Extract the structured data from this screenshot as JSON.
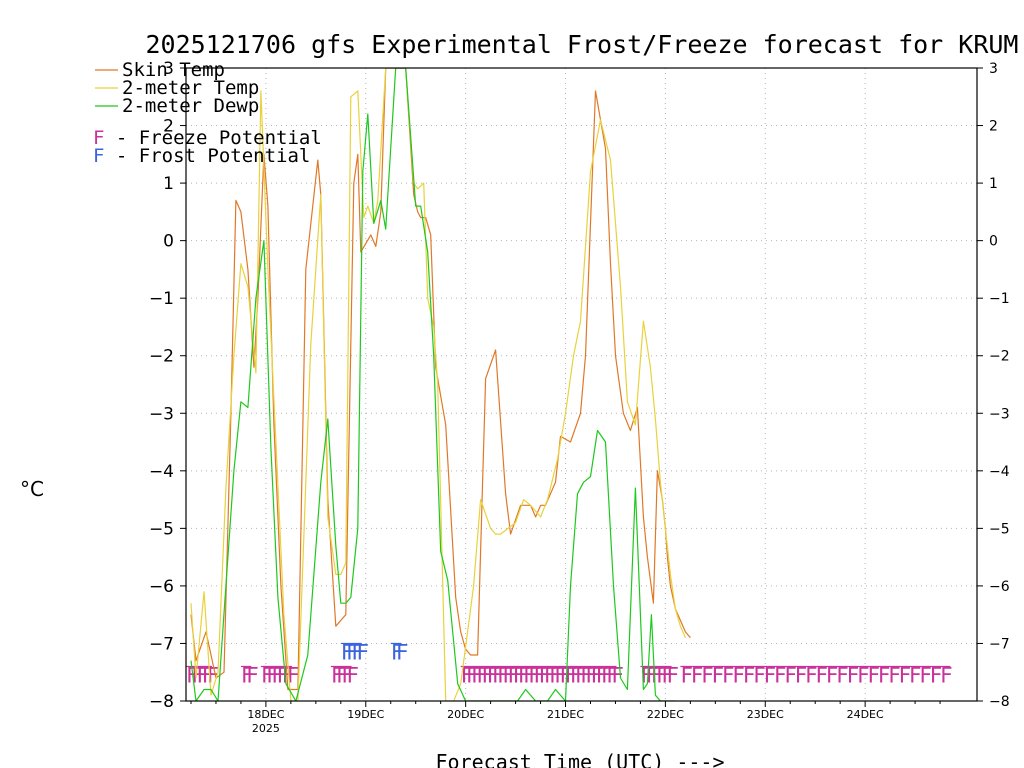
{
  "chart_data": {
    "type": "line",
    "title": "2025121706 gfs Experimental Frost/Freeze forecast for KRUM",
    "xlabel": "Forecast Time (UTC) --->",
    "ylabel": "°C",
    "ylim": [
      -8,
      3
    ],
    "yticks": [
      -8,
      -7,
      -6,
      -5,
      -4,
      -3,
      -2,
      -1,
      0,
      1,
      2,
      3
    ],
    "ytick_labels": [
      "−8",
      "−7",
      "−6",
      "−5",
      "−4",
      "−3",
      "−2",
      "−1",
      "0",
      "1",
      "2",
      "3"
    ],
    "xlim": [
      -0.8,
      7.12
    ],
    "x_unit": "days since 2025-12-18 00Z",
    "xticks": [
      {
        "x": 0,
        "label": "18DEC",
        "sublabel": "2025"
      },
      {
        "x": 1,
        "label": "19DEC",
        "sublabel": ""
      },
      {
        "x": 2,
        "label": "20DEC",
        "sublabel": ""
      },
      {
        "x": 3,
        "label": "21DEC",
        "sublabel": ""
      },
      {
        "x": 4,
        "label": "22DEC",
        "sublabel": ""
      },
      {
        "x": 5,
        "label": "23DEC",
        "sublabel": ""
      },
      {
        "x": 6,
        "label": "24DEC",
        "sublabel": ""
      }
    ],
    "grid": true,
    "legend": {
      "placement": "top-left"
    },
    "series": [
      {
        "name": "Skin Temp",
        "color": "#e07828",
        "x": [
          -0.75,
          -0.7,
          -0.6,
          -0.5,
          -0.42,
          -0.35,
          -0.3,
          -0.25,
          -0.18,
          -0.12,
          -0.08,
          -0.02,
          0.02,
          0.08,
          0.15,
          0.22,
          0.32,
          0.4,
          0.52,
          0.55,
          0.62,
          0.7,
          0.75,
          0.8,
          0.88,
          0.92,
          0.95,
          1.05,
          1.1,
          1.15,
          1.2,
          1.25,
          1.3,
          1.4,
          1.48,
          1.52,
          1.55,
          1.6,
          1.65,
          1.7,
          1.8,
          1.9,
          1.95,
          2.0,
          2.05,
          2.08,
          2.12,
          2.2,
          2.3,
          2.4,
          2.45,
          2.55,
          2.65,
          2.7,
          2.75,
          2.8,
          2.9,
          2.95,
          3.05,
          3.15,
          3.2,
          3.3,
          3.4,
          3.45,
          3.5,
          3.58,
          3.65,
          3.72,
          3.78,
          3.82,
          3.88,
          3.92,
          3.97,
          4.0,
          4.02,
          4.05,
          4.1,
          4.15,
          4.2,
          4.25
        ],
        "y": [
          -6.5,
          -7.3,
          -6.8,
          -7.6,
          -7.5,
          -3.0,
          0.7,
          0.5,
          -0.5,
          -2.2,
          -1.0,
          1.5,
          0.6,
          -3.2,
          -6.0,
          -7.8,
          -7.8,
          -0.5,
          1.4,
          0.8,
          -4.5,
          -6.7,
          -6.6,
          -6.5,
          1.0,
          1.5,
          -0.2,
          0.1,
          -0.1,
          0.5,
          3.0,
          3.0,
          3.0,
          3.0,
          0.8,
          0.5,
          0.4,
          0.4,
          0.1,
          -2.2,
          -3.2,
          -6.2,
          -6.8,
          -7.1,
          -7.2,
          -7.2,
          -7.2,
          -2.4,
          -1.9,
          -4.4,
          -5.1,
          -4.6,
          -4.6,
          -4.8,
          -4.6,
          -4.6,
          -4.2,
          -3.4,
          -3.5,
          -3.0,
          -2.0,
          2.6,
          1.6,
          -0.4,
          -2.0,
          -3.0,
          -3.3,
          -2.9,
          -4.8,
          -5.5,
          -6.3,
          -4.0,
          -4.5,
          -5.0,
          -5.5,
          -6.0,
          -6.4,
          -6.6,
          -6.8,
          -6.9
        ]
      },
      {
        "name": "2-meter Temp",
        "color": "#e8d23c",
        "x": [
          -0.75,
          -0.7,
          -0.62,
          -0.55,
          -0.48,
          -0.4,
          -0.32,
          -0.25,
          -0.18,
          -0.1,
          -0.05,
          0.02,
          0.1,
          0.18,
          0.25,
          0.32,
          0.45,
          0.55,
          0.62,
          0.7,
          0.75,
          0.8,
          0.85,
          0.92,
          0.98,
          1.02,
          1.08,
          1.12,
          1.2,
          1.3,
          1.4,
          1.48,
          1.52,
          1.58,
          1.62,
          1.68,
          1.72,
          1.8,
          1.88,
          1.95,
          2.02,
          2.08,
          2.15,
          2.25,
          2.3,
          2.35,
          2.5,
          2.58,
          2.65,
          2.75,
          2.82,
          2.92,
          3.0,
          3.08,
          3.15,
          3.25,
          3.35,
          3.45,
          3.55,
          3.62,
          3.7,
          3.78,
          3.85,
          3.9,
          3.95,
          4.0,
          4.05,
          4.1,
          4.15,
          4.2
        ],
        "y": [
          -6.3,
          -7.6,
          -6.1,
          -7.9,
          -7.5,
          -4.3,
          -2.0,
          -0.4,
          -0.8,
          -2.3,
          2.6,
          -0.5,
          -3.5,
          -6.5,
          -8.0,
          -8.0,
          -1.8,
          0.8,
          -4.8,
          -5.8,
          -5.8,
          -5.6,
          2.5,
          2.6,
          0.4,
          0.6,
          0.3,
          0.7,
          3.0,
          3.0,
          3.0,
          1.0,
          0.9,
          1.0,
          -1.0,
          -1.5,
          -2.5,
          -8.0,
          -8.0,
          -7.7,
          -6.8,
          -6.0,
          -4.5,
          -5.0,
          -5.1,
          -5.1,
          -4.9,
          -4.5,
          -4.6,
          -4.8,
          -4.5,
          -3.8,
          -3.0,
          -2.0,
          -1.4,
          1.2,
          2.1,
          1.4,
          -0.8,
          -2.8,
          -3.2,
          -1.4,
          -2.2,
          -3.1,
          -4.2,
          -5.0,
          -5.8,
          -6.4,
          -6.7,
          -6.9
        ]
      },
      {
        "name": "2-meter Dewp",
        "color": "#1ec81e",
        "x": [
          -0.75,
          -0.7,
          -0.62,
          -0.55,
          -0.48,
          -0.4,
          -0.32,
          -0.25,
          -0.18,
          -0.1,
          -0.02,
          0.05,
          0.12,
          0.2,
          0.3,
          0.42,
          0.55,
          0.62,
          0.7,
          0.75,
          0.8,
          0.85,
          0.92,
          0.97,
          1.02,
          1.08,
          1.15,
          1.2,
          1.3,
          1.4,
          1.5,
          1.55,
          1.62,
          1.68,
          1.75,
          1.82,
          1.92,
          2.0,
          2.1,
          2.2,
          2.3,
          2.42,
          2.52,
          2.6,
          2.7,
          2.82,
          2.9,
          3.0,
          3.05,
          3.12,
          3.18,
          3.25,
          3.32,
          3.4,
          3.48,
          3.55,
          3.62,
          3.7,
          3.78,
          3.82,
          3.86,
          3.9,
          3.95,
          3.98,
          4.02,
          4.1
        ],
        "y": [
          -7.3,
          -8.0,
          -7.8,
          -7.8,
          -8.0,
          -6.0,
          -4.0,
          -2.8,
          -2.9,
          -1.0,
          0.0,
          -3.6,
          -6.2,
          -7.7,
          -8.0,
          -7.2,
          -4.2,
          -3.1,
          -5.3,
          -6.3,
          -6.3,
          -6.2,
          -5.0,
          1.2,
          2.2,
          0.3,
          0.7,
          0.2,
          3.0,
          3.0,
          0.6,
          0.6,
          -0.2,
          -2.0,
          -5.4,
          -5.9,
          -7.7,
          -8.0,
          -8.0,
          -8.0,
          -8.0,
          -8.0,
          -8.0,
          -7.8,
          -8.0,
          -8.0,
          -7.8,
          -8.0,
          -6.0,
          -4.4,
          -4.2,
          -4.1,
          -3.3,
          -3.5,
          -6.0,
          -7.6,
          -7.8,
          -4.3,
          -7.8,
          -7.7,
          -6.5,
          -7.9,
          -8.0,
          -8.0,
          -8.0,
          -8.0
        ]
      }
    ],
    "legend_entries": [
      {
        "text": "Skin Temp",
        "color": "#e07828"
      },
      {
        "text": "2-meter Temp",
        "color": "#e8d23c"
      },
      {
        "text": "2-meter Dewp",
        "color": "#1ec81e"
      },
      {
        "text": "F - Freeze Potential",
        "color": "#c8329a"
      },
      {
        "text": "F - Frost Potential",
        "color": "#3c64dc"
      }
    ],
    "potential_markers": {
      "char": "F",
      "freeze_color": "#c8329a",
      "frost_color": "#3c64dc",
      "freeze_runs": [
        {
          "start": -0.8,
          "count": 5,
          "step": 0.052
        },
        {
          "start": -0.25,
          "count": 2,
          "step": 0.052
        },
        {
          "start": -0.05,
          "count": 6,
          "step": 0.052
        },
        {
          "start": 0.65,
          "count": 4,
          "step": 0.052
        },
        {
          "start": 1.95,
          "count": 30,
          "step": 0.052
        },
        {
          "start": 3.75,
          "count": 6,
          "step": 0.052
        },
        {
          "start": 4.15,
          "count": 26,
          "step": 0.104
        }
      ],
      "frost_runs": [
        {
          "start": 0.75,
          "count": 4,
          "step": 0.052
        },
        {
          "start": 1.25,
          "count": 2,
          "step": 0.052
        }
      ]
    }
  }
}
